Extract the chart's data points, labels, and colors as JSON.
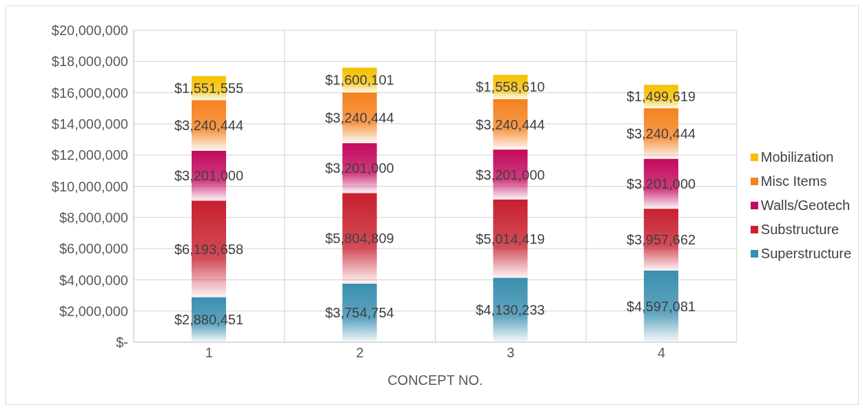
{
  "chart_data": {
    "type": "bar",
    "stacked": true,
    "xlabel": "CONCEPT NO.",
    "categories": [
      "1",
      "2",
      "3",
      "4"
    ],
    "series": [
      {
        "name": "Superstructure",
        "color": "#3a8fb0",
        "values": [
          2880451,
          3754754,
          4130233,
          4597081
        ],
        "value_labels": [
          "$2,880,451",
          "$3,754,754",
          "$4,130,233",
          "$4,597,081"
        ]
      },
      {
        "name": "Substructure",
        "color": "#c8202e",
        "values": [
          6193658,
          5804809,
          5014419,
          3957662
        ],
        "value_labels": [
          "$6,193,658",
          "$5,804,809",
          "$5,014,419",
          "$3,957,662"
        ]
      },
      {
        "name": "Walls/Geotech",
        "color": "#c40a5e",
        "values": [
          3201000,
          3201000,
          3201000,
          3201000
        ],
        "value_labels": [
          "$3,201,000",
          "$3,201,000",
          "$3,201,000",
          "$3,201,000"
        ]
      },
      {
        "name": "Misc Items",
        "color": "#f58220",
        "values": [
          3240444,
          3240444,
          3240444,
          3240444
        ],
        "value_labels": [
          "$3,240,444",
          "$3,240,444",
          "$3,240,444",
          "$3,240,444"
        ]
      },
      {
        "name": "Mobilization",
        "color": "#f5c000",
        "values": [
          1551555,
          1600101,
          1558610,
          1499619
        ],
        "value_labels": [
          "$1,551,555",
          "$1,600,101",
          "$1,558,610",
          "$1,499,619"
        ]
      }
    ],
    "ylim": [
      0,
      20000000
    ],
    "yticks": [
      {
        "value": 0,
        "label": "$-"
      },
      {
        "value": 2000000,
        "label": "$2,000,000"
      },
      {
        "value": 4000000,
        "label": "$4,000,000"
      },
      {
        "value": 6000000,
        "label": "$6,000,000"
      },
      {
        "value": 8000000,
        "label": "$8,000,000"
      },
      {
        "value": 10000000,
        "label": "$10,000,000"
      },
      {
        "value": 12000000,
        "label": "$12,000,000"
      },
      {
        "value": 14000000,
        "label": "$14,000,000"
      },
      {
        "value": 16000000,
        "label": "$16,000,000"
      },
      {
        "value": 18000000,
        "label": "$18,000,000"
      },
      {
        "value": 20000000,
        "label": "$20,000,000"
      }
    ],
    "grid": true,
    "legend": "right"
  }
}
